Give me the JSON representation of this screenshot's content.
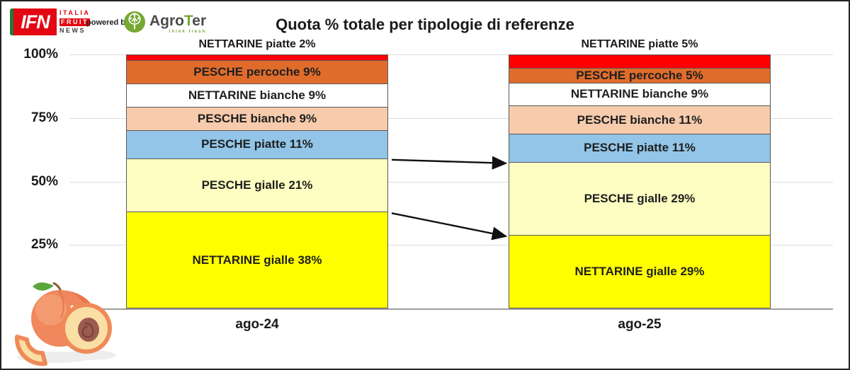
{
  "header": {
    "ifn_logo": {
      "acronym": "IFN",
      "line1": "ITALIA",
      "line2": "FRUIT",
      "line3": "NEWS"
    },
    "powered_by": "powered by",
    "agroter": {
      "prefix": "Agro",
      "accent": "T",
      "suffix": "er",
      "tagline": "think fresh"
    }
  },
  "title": "Quota % totale per tipologie di referenze",
  "chart_data": {
    "type": "bar",
    "stacked": true,
    "title": "Quota % totale per tipologie di referenze",
    "categories": [
      "ago-24",
      "ago-25"
    ],
    "unit": "%",
    "series_order": "top-to-bottom",
    "series": [
      {
        "name": "NETTARINE piatte",
        "values": [
          2,
          5
        ],
        "color": "#FF0000",
        "label_position": "above"
      },
      {
        "name": "PESCHE percoche",
        "values": [
          9,
          5
        ],
        "color": "#E06C2B",
        "label_position": "inside"
      },
      {
        "name": "NETTARINE bianche",
        "values": [
          9,
          9
        ],
        "color": "#FFFFFF",
        "label_position": "inside"
      },
      {
        "name": "PESCHE bianche",
        "values": [
          9,
          11
        ],
        "color": "#F7CBAC",
        "label_position": "inside"
      },
      {
        "name": "PESCHE piatte",
        "values": [
          11,
          11
        ],
        "color": "#92C5E7",
        "label_position": "inside"
      },
      {
        "name": "PESCHE gialle",
        "values": [
          21,
          29
        ],
        "color": "#FEFEC2",
        "label_position": "inside"
      },
      {
        "name": "NETTARINE gialle",
        "values": [
          38,
          29
        ],
        "color": "#FFFF00",
        "label_position": "inside"
      }
    ],
    "yticks": [
      {
        "label": "100%",
        "value": 100
      },
      {
        "label": "75%",
        "value": 75
      },
      {
        "label": "50%",
        "value": 50
      },
      {
        "label": "25%",
        "value": 25
      }
    ],
    "ylim": [
      0,
      100
    ],
    "grid": true,
    "legend": "none",
    "connector_arrows": [
      {
        "from_category": "ago-24",
        "to_category": "ago-25",
        "at_top_of_series": "PESCHE gialle"
      },
      {
        "from_category": "ago-24",
        "to_category": "ago-25",
        "at_top_of_series": "NETTARINE gialle"
      }
    ]
  }
}
